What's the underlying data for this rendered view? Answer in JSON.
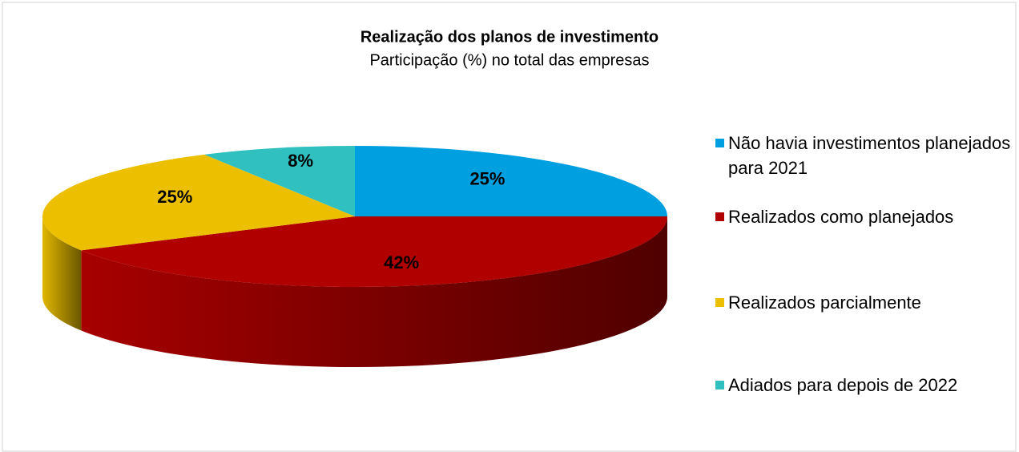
{
  "chart_data": {
    "type": "pie",
    "title": "Realização dos planos de investimento",
    "subtitle": "Participação (%) no total das empresas",
    "categories": [
      "Não havia investimentos planejados para 2021",
      "Realizados como planejados",
      "Realizados parcialmente",
      "Adiados para depois de 2022"
    ],
    "values": [
      25,
      42,
      25,
      8
    ],
    "value_labels": [
      "25%",
      "42%",
      "25%",
      "8%"
    ],
    "colors": [
      "#00a0e0",
      "#b00000",
      "#ecc000",
      "#30c0c0"
    ],
    "legend": "right"
  }
}
